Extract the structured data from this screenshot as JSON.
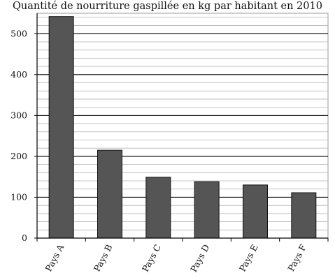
{
  "chart_data": {
    "type": "bar",
    "title": "Quantité de nourriture gaspillée en kg par habitant en 2010",
    "xlabel": "",
    "ylabel": "",
    "categories": [
      "Pays A",
      "Pays B",
      "Pays C",
      "Pays D",
      "Pays E",
      "Pays F"
    ],
    "values": [
      542,
      215,
      149,
      138,
      130,
      111
    ],
    "ylim": [
      0,
      550
    ],
    "yticks": [
      0,
      100,
      200,
      300,
      400,
      500
    ],
    "minor_grid_step": 20,
    "grid": true,
    "legend": "none",
    "bar_color": "#555555"
  }
}
